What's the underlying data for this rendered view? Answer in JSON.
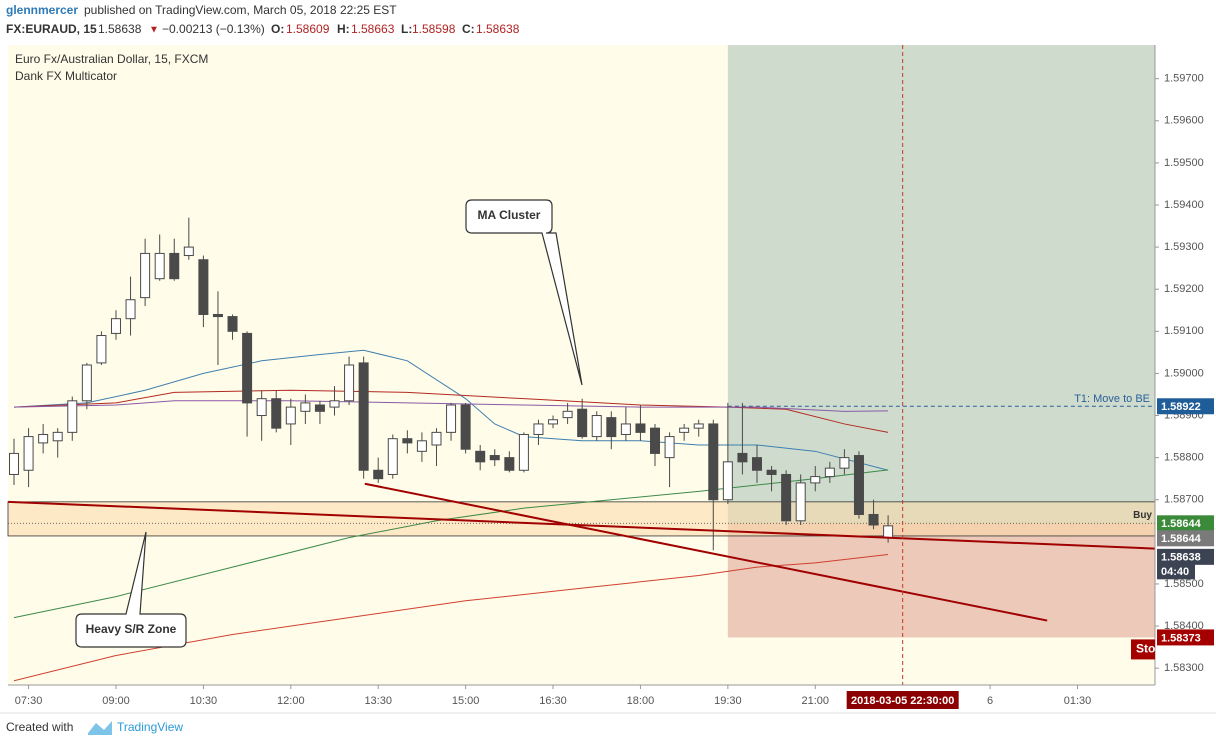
{
  "header": {
    "author": "glennmercer",
    "published": "published on TradingView.com, March 05, 2018 22:25 EST",
    "symbol": "FX:EURAUD, 15",
    "last": "1.58638",
    "arrow": "▼",
    "change": "−0.00213 (−0.13%)",
    "o_label": "O:",
    "o": "1.58609",
    "h_label": "H:",
    "h": "1.58663",
    "l_label": "L:",
    "l": "1.58598",
    "c_label": "C:",
    "c": "1.58638"
  },
  "footer": {
    "created": "Created with",
    "brand": "TradingView"
  },
  "chart_data": {
    "type": "candlestick",
    "title": "Euro Fx/Australian Dollar, 15, FXCM",
    "indicator": "Dank FX Multicator",
    "up_color": "#ffffff",
    "down_color": "#4a4a4a",
    "wick_color": "#4a4a4a",
    "background": "#fffce9",
    "grid": false,
    "xlim": [
      7.147,
      26.83
    ],
    "ylim": [
      1.5826,
      1.5978
    ],
    "xticks": [
      {
        "value": 7.5,
        "label": "07:30"
      },
      {
        "value": 9,
        "label": "09:00"
      },
      {
        "value": 10.5,
        "label": "10:30"
      },
      {
        "value": 12,
        "label": "12:00"
      },
      {
        "value": 13.5,
        "label": "13:30"
      },
      {
        "value": 15,
        "label": "15:00"
      },
      {
        "value": 16.5,
        "label": "16:30"
      },
      {
        "value": 18,
        "label": "18:00"
      },
      {
        "value": 19.5,
        "label": "19:30"
      },
      {
        "value": 21,
        "label": "21:00"
      },
      {
        "value": 24,
        "label": "6"
      },
      {
        "value": 25.5,
        "label": "01:30"
      }
    ],
    "yticks": [
      {
        "value": 1.583,
        "label": "1.58300"
      },
      {
        "value": 1.584,
        "label": "1.58400"
      },
      {
        "value": 1.585,
        "label": "1.58500"
      },
      {
        "value": 1.587,
        "label": "1.58700"
      },
      {
        "value": 1.588,
        "label": "1.58800"
      },
      {
        "value": 1.589,
        "label": "1.58900"
      },
      {
        "value": 1.59,
        "label": "1.59000"
      },
      {
        "value": 1.591,
        "label": "1.59100"
      },
      {
        "value": 1.592,
        "label": "1.59200"
      },
      {
        "value": 1.593,
        "label": "1.59300"
      },
      {
        "value": 1.594,
        "label": "1.59400"
      },
      {
        "value": 1.595,
        "label": "1.59500"
      },
      {
        "value": 1.596,
        "label": "1.59600"
      },
      {
        "value": 1.597,
        "label": "1.59700"
      }
    ],
    "x": [
      7.25,
      7.5,
      7.75,
      8,
      8.25,
      8.5,
      8.75,
      9,
      9.25,
      9.5,
      9.75,
      10,
      10.25,
      10.5,
      10.75,
      11,
      11.25,
      11.5,
      11.75,
      12,
      12.25,
      12.5,
      12.75,
      13,
      13.25,
      13.5,
      13.75,
      14,
      14.25,
      14.5,
      14.75,
      15,
      15.25,
      15.5,
      15.75,
      16,
      16.25,
      16.5,
      16.75,
      17,
      17.25,
      17.5,
      17.75,
      18,
      18.25,
      18.5,
      18.75,
      19,
      19.25,
      19.5,
      19.75,
      20,
      20.25,
      20.5,
      20.75,
      21,
      21.25,
      21.5,
      21.75,
      22,
      22.25
    ],
    "open": [
      1.5876,
      1.5877,
      1.58835,
      1.5884,
      1.5886,
      1.58935,
      1.59025,
      1.59095,
      1.5913,
      1.5918,
      1.59225,
      1.59285,
      1.5928,
      1.5927,
      1.5914,
      1.59135,
      1.59095,
      1.589,
      1.5894,
      1.5888,
      1.5891,
      1.58925,
      1.5892,
      1.58935,
      1.59025,
      1.5877,
      1.5876,
      1.58845,
      1.58815,
      1.5883,
      1.5886,
      1.58925,
      1.58815,
      1.58805,
      1.588,
      1.5877,
      1.58855,
      1.5888,
      1.58895,
      1.58915,
      1.5885,
      1.58895,
      1.58855,
      1.5888,
      1.5887,
      1.588,
      1.5886,
      1.5887,
      1.5888,
      1.587,
      1.5881,
      1.588,
      1.5877,
      1.5876,
      1.5865,
      1.5874,
      1.58755,
      1.58775,
      1.58805,
      1.58665,
      1.58609
    ],
    "high": [
      1.58845,
      1.5887,
      1.5888,
      1.5887,
      1.58945,
      1.59025,
      1.591,
      1.5915,
      1.5923,
      1.5932,
      1.5933,
      1.5932,
      1.5937,
      1.5928,
      1.59195,
      1.5914,
      1.591,
      1.5896,
      1.5896,
      1.5894,
      1.5895,
      1.58935,
      1.5897,
      1.5904,
      1.5904,
      1.588,
      1.58855,
      1.58865,
      1.5886,
      1.5887,
      1.5893,
      1.5893,
      1.5883,
      1.5882,
      1.58815,
      1.5886,
      1.5889,
      1.589,
      1.5893,
      1.5894,
      1.5891,
      1.5891,
      1.5892,
      1.58925,
      1.5888,
      1.5886,
      1.5888,
      1.5889,
      1.5889,
      1.5893,
      1.5893,
      1.5883,
      1.5878,
      1.5877,
      1.5876,
      1.5878,
      1.5879,
      1.5882,
      1.58815,
      1.587,
      1.58663
    ],
    "low": [
      1.58735,
      1.5873,
      1.5881,
      1.588,
      1.5884,
      1.58915,
      1.5902,
      1.5908,
      1.5909,
      1.5916,
      1.5922,
      1.5922,
      1.5927,
      1.5911,
      1.5902,
      1.5908,
      1.5885,
      1.5884,
      1.5886,
      1.5883,
      1.5888,
      1.5888,
      1.589,
      1.58925,
      1.5875,
      1.5874,
      1.5875,
      1.5881,
      1.5879,
      1.5878,
      1.5884,
      1.5881,
      1.5877,
      1.5878,
      1.58765,
      1.58765,
      1.5883,
      1.5887,
      1.5888,
      1.58845,
      1.5884,
      1.5882,
      1.5884,
      1.5884,
      1.5878,
      1.5873,
      1.5884,
      1.5885,
      1.5858,
      1.5869,
      1.5876,
      1.5874,
      1.5872,
      1.5864,
      1.5864,
      1.5872,
      1.5874,
      1.5876,
      1.58655,
      1.5863,
      1.58598
    ],
    "close": [
      1.5881,
      1.5885,
      1.58855,
      1.5886,
      1.58935,
      1.5902,
      1.5909,
      1.5913,
      1.59175,
      1.59285,
      1.59285,
      1.59225,
      1.593,
      1.5914,
      1.59135,
      1.591,
      1.5893,
      1.5894,
      1.5887,
      1.5892,
      1.5893,
      1.5891,
      1.58935,
      1.5902,
      1.5877,
      1.5875,
      1.58845,
      1.58835,
      1.5884,
      1.5886,
      1.58925,
      1.5882,
      1.5879,
      1.58795,
      1.5877,
      1.58855,
      1.5888,
      1.5889,
      1.5891,
      1.5885,
      1.589,
      1.5885,
      1.5888,
      1.5886,
      1.5881,
      1.5885,
      1.5887,
      1.5888,
      1.587,
      1.5879,
      1.5879,
      1.5877,
      1.5876,
      1.5865,
      1.5874,
      1.58755,
      1.58775,
      1.588,
      1.58665,
      1.5864,
      1.58638
    ],
    "moving_averages": [
      {
        "color": "#3f7fb0",
        "x": [
          7.25,
          8.5,
          9.5,
          10.5,
          11.5,
          12.5,
          13.25,
          14,
          15,
          15.5,
          16,
          17,
          18,
          19,
          20,
          21,
          22.25
        ],
        "values": [
          1.5892,
          1.5893,
          1.5896,
          1.59,
          1.5903,
          1.59045,
          1.59055,
          1.5903,
          1.5894,
          1.5888,
          1.5885,
          1.5884,
          1.5884,
          1.5883,
          1.5883,
          1.58815,
          1.5877
        ]
      },
      {
        "color": "#b22a22",
        "x": [
          7.25,
          9,
          10,
          12,
          14,
          16,
          18,
          19.5,
          20.5,
          21.5,
          22.25
        ],
        "values": [
          1.5892,
          1.5893,
          1.58955,
          1.5896,
          1.58955,
          1.5894,
          1.58925,
          1.5892,
          1.58915,
          1.5888,
          1.5886
        ]
      },
      {
        "color": "#8a5aa8",
        "x": [
          7.25,
          9,
          10,
          12,
          14,
          16,
          18,
          20,
          21.5,
          22.25
        ],
        "values": [
          1.5892,
          1.58925,
          1.58935,
          1.58935,
          1.5893,
          1.58925,
          1.5892,
          1.5892,
          1.5891,
          1.58911
        ]
      },
      {
        "color": "#3d8a4a",
        "x": [
          7.25,
          9,
          11,
          13,
          14.5,
          16,
          17.5,
          19,
          20,
          21,
          22.25
        ],
        "values": [
          1.5842,
          1.5847,
          1.5854,
          1.5861,
          1.5865,
          1.5868,
          1.587,
          1.5872,
          1.58735,
          1.5875,
          1.58771
        ]
      },
      {
        "color": "#d04030",
        "x": [
          7.25,
          9,
          11,
          13,
          15,
          17,
          19,
          20,
          21,
          22.25
        ],
        "values": [
          1.5827,
          1.5833,
          1.5838,
          1.5842,
          1.5846,
          1.5849,
          1.5852,
          1.5854,
          1.5855,
          1.5857
        ]
      }
    ],
    "trend_lines": [
      {
        "color": "#a00000",
        "x": [
          7.15,
          26.83
        ],
        "values": [
          1.58695,
          1.58584
        ]
      },
      {
        "color": "#a00000",
        "x": [
          13.27,
          24.98
        ],
        "values": [
          1.58738,
          1.58413
        ]
      }
    ],
    "sr_zone": {
      "top": 1.58695,
      "bottom": 1.58614,
      "mid": 1.58644,
      "label": "Heavy S/R Zone"
    },
    "position": {
      "start_x": 19.5,
      "entry": 1.58644,
      "target": 1.58922,
      "stop": 1.58373,
      "entry_label": "Buy",
      "target_label": "T1:  Move to BE",
      "stop_label": "Sto"
    },
    "crosshair": {
      "x": 22.5,
      "label": "2018-03-05 22:30:00"
    },
    "countdown": "04:40",
    "callout": "MA Cluster"
  }
}
